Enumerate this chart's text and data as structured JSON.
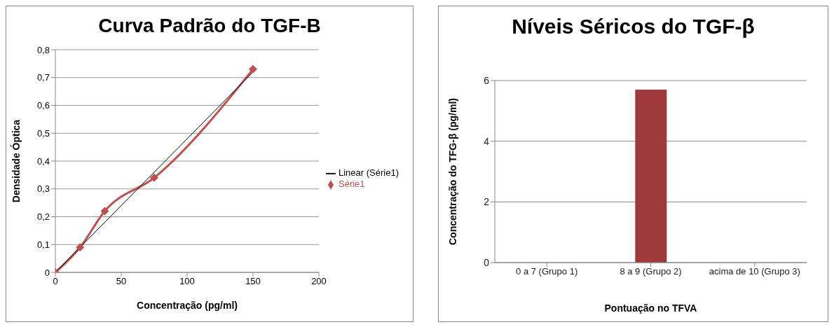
{
  "chart_data": [
    {
      "type": "line",
      "title": "Curva Padrão do TGF-B",
      "xlabel": "Concentração (pg/ml)",
      "ylabel": "Densidade Óptica",
      "series": [
        {
          "name": "Série1",
          "color": "#c0504d",
          "marker": "diamond",
          "x": [
            0,
            18.75,
            37.5,
            75,
            150
          ],
          "values": [
            0,
            0.09,
            0.22,
            0.34,
            0.73
          ]
        },
        {
          "name": "Linear (Série1)",
          "color": "#000000",
          "marker": "none",
          "x": [
            0,
            150
          ],
          "values": [
            0,
            0.72
          ]
        }
      ],
      "xlim": [
        0,
        200
      ],
      "xticks": [
        0,
        50,
        100,
        150,
        200
      ],
      "ylim": [
        0,
        0.8
      ],
      "yticks": [
        {
          "value": 0,
          "label": "0"
        },
        {
          "value": 0.1,
          "label": "0,1"
        },
        {
          "value": 0.2,
          "label": "0,2"
        },
        {
          "value": 0.3,
          "label": "0,3"
        },
        {
          "value": 0.4,
          "label": "0,4"
        },
        {
          "value": 0.5,
          "label": "0,5"
        },
        {
          "value": 0.6,
          "label": "0,6"
        },
        {
          "value": 0.7,
          "label": "0,7"
        },
        {
          "value": 0.8,
          "label": "0,8"
        }
      ],
      "grid": "y",
      "legend": "right"
    },
    {
      "type": "bar",
      "title": "Níveis Séricos do TGF-β",
      "xlabel": "Pontuação no TFVA",
      "ylabel": "Concentração do TFG-β (pg/ml)",
      "categories": [
        "0 a 7 (Grupo 1)",
        "8 a 9 (Grupo 2)",
        "acima de 10 (Grupo 3)"
      ],
      "values": [
        0,
        5.7,
        0
      ],
      "colors": [
        "#17375e",
        "#a0393a",
        "#77a33c"
      ],
      "ylim": [
        0,
        6
      ],
      "yticks": [
        0,
        2,
        4,
        6
      ],
      "grid": "y"
    }
  ]
}
